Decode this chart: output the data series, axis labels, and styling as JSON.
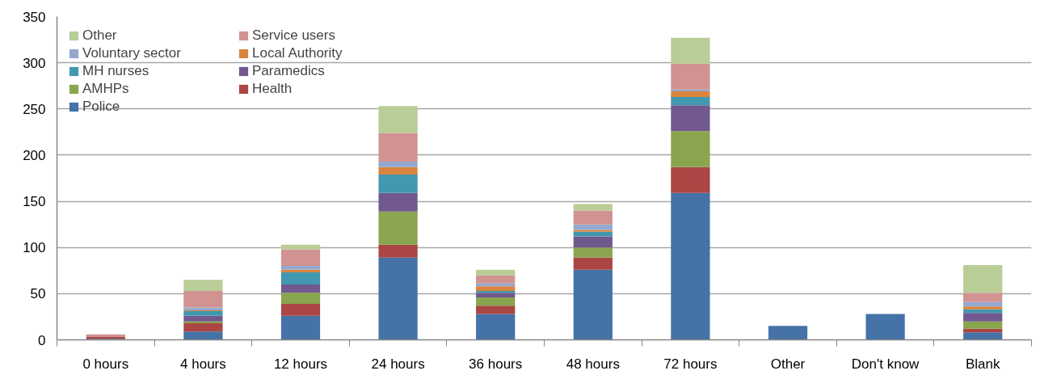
{
  "chart_data": {
    "type": "bar",
    "stacked": true,
    "categories": [
      "0 hours",
      "4 hours",
      "12 hours",
      "24 hours",
      "36 hours",
      "48 hours",
      "72 hours",
      "Other",
      "Don't know",
      "Blank"
    ],
    "series": [
      {
        "name": "Police",
        "color": "#4572a7",
        "values": [
          1,
          9,
          26,
          89,
          28,
          76,
          159,
          15,
          28,
          8
        ]
      },
      {
        "name": "Health",
        "color": "#aa4643",
        "values": [
          2,
          9,
          13,
          14,
          9,
          13,
          28,
          0,
          0,
          4
        ]
      },
      {
        "name": "AMHPs",
        "color": "#89a54e",
        "values": [
          0,
          2,
          12,
          36,
          9,
          11,
          39,
          0,
          0,
          8
        ]
      },
      {
        "name": "Paramedics",
        "color": "#71588f",
        "values": [
          0,
          6,
          9,
          20,
          5,
          12,
          28,
          0,
          0,
          9
        ]
      },
      {
        "name": "MH nurses",
        "color": "#4198af",
        "values": [
          0,
          5,
          13,
          20,
          2,
          5,
          9,
          0,
          0,
          4
        ]
      },
      {
        "name": "Local Authority",
        "color": "#db843d",
        "values": [
          0,
          1,
          3,
          8,
          5,
          2,
          6,
          0,
          0,
          3
        ]
      },
      {
        "name": "Voluntary sector",
        "color": "#93a9cf",
        "values": [
          0,
          3,
          4,
          6,
          3,
          6,
          2,
          0,
          0,
          5
        ]
      },
      {
        "name": "Service users",
        "color": "#d19392",
        "values": [
          3,
          18,
          18,
          31,
          9,
          15,
          28,
          0,
          0,
          10
        ]
      },
      {
        "name": "Other",
        "color": "#b9cd96",
        "values": [
          0,
          12,
          5,
          29,
          6,
          7,
          28,
          0,
          0,
          30
        ]
      }
    ],
    "ylim": [
      0,
      350
    ],
    "yticks": [
      0,
      50,
      100,
      150,
      200,
      250,
      300,
      350
    ],
    "grid": "y",
    "legend": "top left"
  }
}
